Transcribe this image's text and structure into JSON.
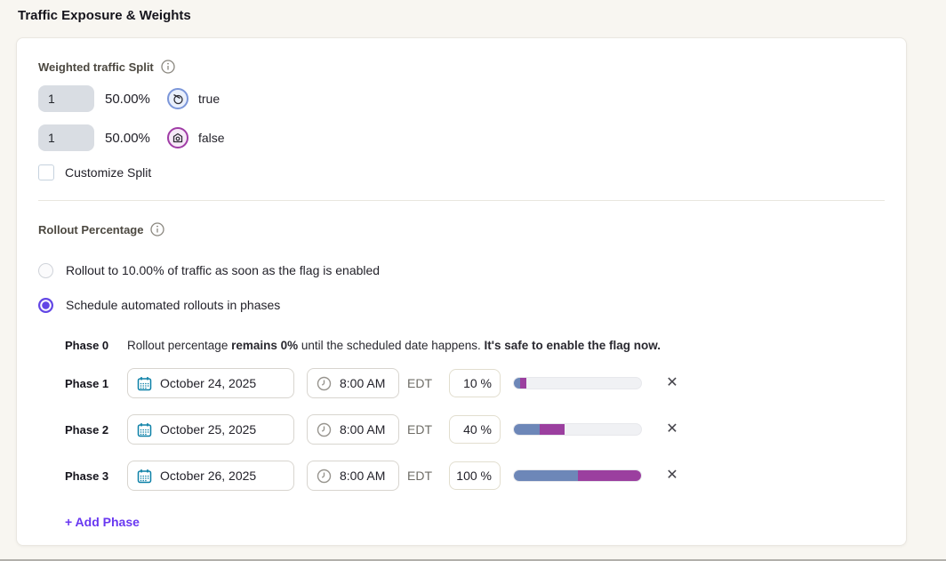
{
  "header": {
    "title": "Traffic Exposure & Weights"
  },
  "weighted_split": {
    "label": "Weighted traffic Split",
    "rows": [
      {
        "weight": "1",
        "percent": "50.00%",
        "variation": "true"
      },
      {
        "weight": "1",
        "percent": "50.00%",
        "variation": "false"
      }
    ],
    "customize_label": "Customize Split"
  },
  "rollout": {
    "label": "Rollout Percentage",
    "option_immediate": "Rollout to 10.00% of traffic as soon as the flag is enabled",
    "option_scheduled": "Schedule automated rollouts in phases",
    "selected_option": "scheduled",
    "phase0": {
      "label": "Phase 0",
      "t1": "Rollout percentage ",
      "b1": "remains 0%",
      "t2": " until the scheduled date happens. ",
      "b2": "It's safe to enable the flag now."
    },
    "phases": [
      {
        "label": "Phase 1",
        "date": "October 24, 2025",
        "time": "8:00 AM",
        "timezone": "EDT",
        "percent_label": "10 %",
        "percent": 10,
        "bar": {
          "blue": 5,
          "purple": 5
        }
      },
      {
        "label": "Phase 2",
        "date": "October 25, 2025",
        "time": "8:00 AM",
        "timezone": "EDT",
        "percent_label": "40 %",
        "percent": 40,
        "bar": {
          "blue": 20,
          "purple": 20
        }
      },
      {
        "label": "Phase 3",
        "date": "October 26, 2025",
        "time": "8:00 AM",
        "timezone": "EDT",
        "percent_label": "100 %",
        "percent": 100,
        "bar": {
          "blue": 50,
          "purple": 50
        }
      }
    ],
    "add_phase_label": "+ Add Phase"
  },
  "colors": {
    "accent": "#6246e5",
    "bar_blue": "#6d87b8",
    "bar_purple": "#9b3f9f",
    "bar_track": "#f0f1f4",
    "calendar_icon": "#0b80a7",
    "variation_true_border": "#7b96d9",
    "variation_false_border": "#a03ca6"
  }
}
